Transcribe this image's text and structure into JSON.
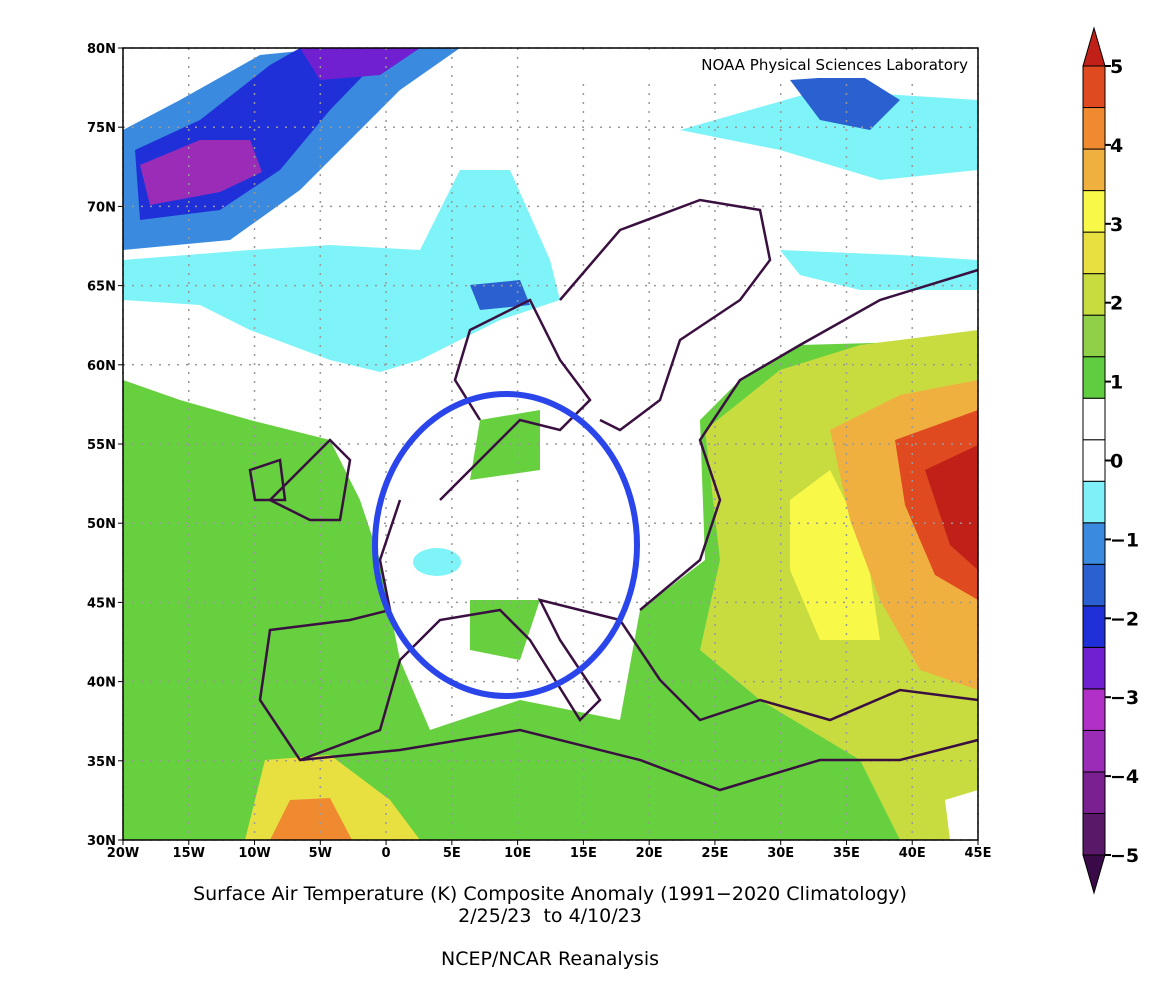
{
  "map": {
    "credit": "NOAA Physical Sciences Laboratory",
    "xlim": [
      -20,
      45
    ],
    "ylim": [
      30,
      80
    ],
    "lat_ticks": [
      {
        "value": 80,
        "label": "80N"
      },
      {
        "value": 75,
        "label": "75N"
      },
      {
        "value": 70,
        "label": "70N"
      },
      {
        "value": 65,
        "label": "65N"
      },
      {
        "value": 60,
        "label": "60N"
      },
      {
        "value": 55,
        "label": "55N"
      },
      {
        "value": 50,
        "label": "50N"
      },
      {
        "value": 45,
        "label": "45N"
      },
      {
        "value": 40,
        "label": "40N"
      },
      {
        "value": 35,
        "label": "35N"
      },
      {
        "value": 30,
        "label": "30N"
      }
    ],
    "lon_ticks": [
      {
        "value": -20,
        "label": "20W"
      },
      {
        "value": -15,
        "label": "15W"
      },
      {
        "value": -10,
        "label": "10W"
      },
      {
        "value": -5,
        "label": "5W"
      },
      0,
      {
        "value": 5,
        "label": "5E"
      },
      {
        "value": 10,
        "label": "10E"
      },
      {
        "value": 15,
        "label": "15E"
      },
      {
        "value": 20,
        "label": "20E"
      },
      {
        "value": 25,
        "label": "25E"
      },
      {
        "value": 30,
        "label": "30E"
      },
      {
        "value": 35,
        "label": "35E"
      },
      {
        "value": 40,
        "label": "40E"
      },
      {
        "value": 45,
        "label": "45E"
      }
    ],
    "title": "Surface Air Temperature (K) Composite Anomaly (1991−2020 Climatology)",
    "dates": "2/25/23  to 4/10/23",
    "source": "NCEP/NCAR Reanalysis",
    "colorbar": {
      "lim": [
        -5,
        5
      ],
      "ticks": [
        {
          "value": -5,
          "label": "−5"
        },
        {
          "value": -4,
          "label": "−4"
        },
        {
          "value": -3,
          "label": "−3"
        },
        {
          "value": -2,
          "label": "−2"
        },
        {
          "value": -1,
          "label": "−1"
        },
        0,
        1,
        2,
        3,
        4,
        5
      ],
      "colors": [
        "#3a0a48",
        "#5a1868",
        "#7a2090",
        "#9a2cb8",
        "#b030c8",
        "#7020d0",
        "#2030d8",
        "#2a60d0",
        "#3a8ae0",
        "#80f0f8",
        "#ffffff",
        "#ffffff",
        "#60cc40",
        "#90d048",
        "#c8dc40",
        "#e8e040",
        "#f8f848",
        "#f0b040",
        "#f08a30",
        "#e04a20",
        "#c02018"
      ]
    }
  }
}
